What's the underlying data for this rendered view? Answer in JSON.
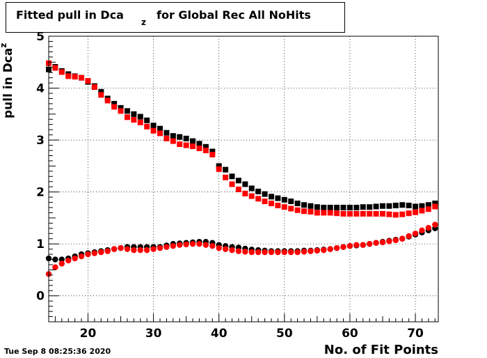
{
  "title": {
    "prefix": "Fitted pull in Dca",
    "subscript": "z",
    "suffix": "for Global Rec All NoHits"
  },
  "ylabel": {
    "main": "pull in Dca",
    "subscript": "z"
  },
  "xlabel": "No. of Fit Points",
  "timestamp": "Tue Sep  8 08:25:36 2020",
  "chart_data": {
    "type": "scatter",
    "xlim": [
      14,
      73.5
    ],
    "ylim": [
      -0.5,
      5
    ],
    "xticks": [
      20,
      30,
      40,
      50,
      60,
      70
    ],
    "yticks": [
      0,
      1,
      2,
      3,
      4,
      5
    ],
    "grid": true,
    "colors": {
      "black": "#000000",
      "red": "#ff0000"
    },
    "series": [
      {
        "marker": "square",
        "color": "#000000",
        "x": [
          14,
          15,
          16,
          17,
          18,
          19,
          20,
          21,
          22,
          23,
          24,
          25,
          26,
          27,
          28,
          29,
          30,
          31,
          32,
          33,
          34,
          35,
          36,
          37,
          38,
          39,
          40,
          41,
          42,
          43,
          44,
          45,
          46,
          47,
          48,
          49,
          50,
          51,
          52,
          53,
          54,
          55,
          56,
          57,
          58,
          59,
          60,
          61,
          62,
          63,
          64,
          65,
          66,
          67,
          68,
          69,
          70,
          71,
          72,
          73
        ],
        "y": [
          4.36,
          4.41,
          4.33,
          4.27,
          4.23,
          4.2,
          4.12,
          4.04,
          3.93,
          3.8,
          3.7,
          3.62,
          3.56,
          3.5,
          3.45,
          3.38,
          3.28,
          3.22,
          3.14,
          3.08,
          3.06,
          3.03,
          2.98,
          2.93,
          2.87,
          2.78,
          2.5,
          2.43,
          2.3,
          2.22,
          2.15,
          2.07,
          2.01,
          1.96,
          1.91,
          1.88,
          1.85,
          1.82,
          1.78,
          1.75,
          1.73,
          1.71,
          1.7,
          1.7,
          1.7,
          1.7,
          1.7,
          1.7,
          1.71,
          1.71,
          1.72,
          1.73,
          1.73,
          1.74,
          1.75,
          1.74,
          1.72,
          1.73,
          1.75,
          1.78
        ]
      },
      {
        "marker": "square",
        "color": "#ff0000",
        "x": [
          14,
          15,
          16,
          17,
          18,
          19,
          20,
          21,
          22,
          23,
          24,
          25,
          26,
          27,
          28,
          29,
          30,
          31,
          32,
          33,
          34,
          35,
          36,
          37,
          38,
          39,
          40,
          41,
          42,
          43,
          44,
          45,
          46,
          47,
          48,
          49,
          50,
          51,
          52,
          53,
          54,
          55,
          56,
          57,
          58,
          59,
          60,
          61,
          62,
          63,
          64,
          65,
          66,
          67,
          68,
          69,
          70,
          71,
          72,
          73
        ],
        "y": [
          4.48,
          4.39,
          4.31,
          4.23,
          4.22,
          4.2,
          4.14,
          4.02,
          3.87,
          3.76,
          3.64,
          3.56,
          3.44,
          3.39,
          3.34,
          3.26,
          3.18,
          3.13,
          3.03,
          2.98,
          2.92,
          2.9,
          2.88,
          2.84,
          2.8,
          2.72,
          2.44,
          2.28,
          2.15,
          2.05,
          1.97,
          1.92,
          1.87,
          1.82,
          1.78,
          1.74,
          1.71,
          1.68,
          1.65,
          1.63,
          1.62,
          1.6,
          1.6,
          1.6,
          1.59,
          1.58,
          1.58,
          1.58,
          1.58,
          1.58,
          1.58,
          1.58,
          1.57,
          1.56,
          1.57,
          1.59,
          1.61,
          1.64,
          1.67,
          1.72
        ]
      },
      {
        "marker": "circle",
        "color": "#000000",
        "x": [
          14,
          15,
          16,
          17,
          18,
          19,
          20,
          21,
          22,
          23,
          24,
          25,
          26,
          27,
          28,
          29,
          30,
          31,
          32,
          33,
          34,
          35,
          36,
          37,
          38,
          39,
          40,
          41,
          42,
          43,
          44,
          45,
          46,
          47,
          48,
          49,
          50,
          51,
          52,
          53,
          54,
          55,
          56,
          57,
          58,
          59,
          60,
          61,
          62,
          63,
          64,
          65,
          66,
          67,
          68,
          69,
          70,
          71,
          72,
          73
        ],
        "y": [
          0.72,
          0.7,
          0.7,
          0.72,
          0.76,
          0.8,
          0.82,
          0.84,
          0.86,
          0.88,
          0.9,
          0.92,
          0.94,
          0.94,
          0.94,
          0.94,
          0.94,
          0.94,
          0.97,
          1.0,
          1.01,
          1.02,
          1.03,
          1.04,
          1.04,
          1.02,
          0.98,
          0.96,
          0.94,
          0.93,
          0.91,
          0.89,
          0.88,
          0.87,
          0.86,
          0.86,
          0.86,
          0.86,
          0.86,
          0.87,
          0.87,
          0.88,
          0.89,
          0.9,
          0.92,
          0.94,
          0.96,
          0.97,
          0.98,
          1.0,
          1.02,
          1.04,
          1.06,
          1.08,
          1.1,
          1.14,
          1.18,
          1.22,
          1.26,
          1.3
        ]
      },
      {
        "marker": "circle",
        "color": "#ff0000",
        "x": [
          14,
          15,
          16,
          17,
          18,
          19,
          20,
          21,
          22,
          23,
          24,
          25,
          26,
          27,
          28,
          29,
          30,
          31,
          32,
          33,
          34,
          35,
          36,
          37,
          38,
          39,
          40,
          41,
          42,
          43,
          44,
          45,
          46,
          47,
          48,
          49,
          50,
          51,
          52,
          53,
          54,
          55,
          56,
          57,
          58,
          59,
          60,
          61,
          62,
          63,
          64,
          65,
          66,
          67,
          68,
          69,
          70,
          71,
          72,
          73
        ],
        "y": [
          0.42,
          0.55,
          0.62,
          0.68,
          0.72,
          0.76,
          0.8,
          0.82,
          0.84,
          0.86,
          0.9,
          0.92,
          0.9,
          0.88,
          0.88,
          0.88,
          0.9,
          0.92,
          0.94,
          0.96,
          0.98,
          0.99,
          1.0,
          1.0,
          0.98,
          0.96,
          0.92,
          0.9,
          0.88,
          0.86,
          0.85,
          0.84,
          0.84,
          0.84,
          0.84,
          0.84,
          0.84,
          0.84,
          0.84,
          0.85,
          0.86,
          0.87,
          0.88,
          0.9,
          0.92,
          0.94,
          0.96,
          0.98,
          0.98,
          1.0,
          1.02,
          1.03,
          1.05,
          1.07,
          1.1,
          1.15,
          1.2,
          1.26,
          1.31,
          1.37
        ]
      }
    ]
  }
}
